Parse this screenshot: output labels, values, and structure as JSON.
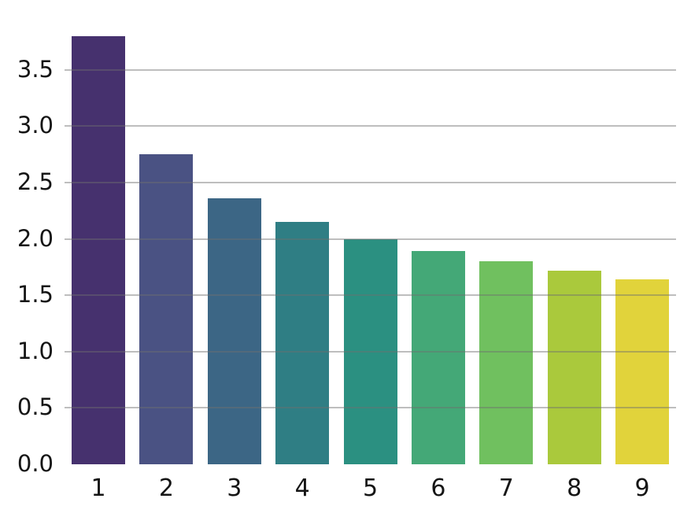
{
  "chart_data": {
    "type": "bar",
    "title": "",
    "xlabel": "",
    "ylabel": "",
    "categories": [
      "1",
      "2",
      "3",
      "4",
      "5",
      "6",
      "7",
      "8",
      "9"
    ],
    "values": [
      3.8,
      2.75,
      2.36,
      2.15,
      2.0,
      1.89,
      1.8,
      1.72,
      1.64
    ],
    "bar_colors": [
      "#46316e",
      "#4a5283",
      "#3c6685",
      "#2f7e84",
      "#2b9081",
      "#44a877",
      "#70c05f",
      "#aac93c",
      "#e1d33b"
    ],
    "ylim": [
      0,
      3.93
    ],
    "yticks": [
      0.0,
      0.5,
      1.0,
      1.5,
      2.0,
      2.5,
      3.0,
      3.5
    ],
    "ytick_labels": [
      "0.0",
      "0.5",
      "1.0",
      "1.5",
      "2.0",
      "2.5",
      "3.0",
      "3.5"
    ],
    "gridlines_at": [
      0.5,
      1.0,
      1.5,
      2.0,
      2.5,
      3.0,
      3.5
    ],
    "grid": "horizontal",
    "legend": "none",
    "colormap": "viridis",
    "background_color": "#ffffff",
    "gridline_color": "#c9c9c9",
    "tick_label_color": "#151515"
  }
}
